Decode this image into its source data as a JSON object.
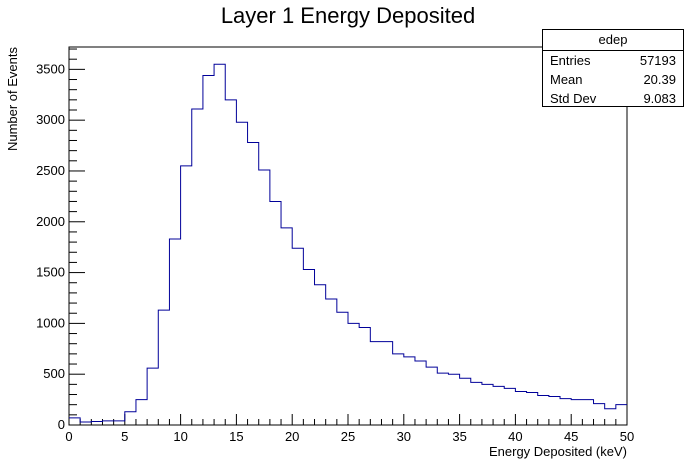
{
  "chart_data": {
    "type": "bar",
    "title": "Layer 1 Energy Deposited",
    "xlabel": "Energy Deposited (keV)",
    "ylabel": "Number of Events",
    "xlim": [
      0,
      50
    ],
    "ylim": [
      0,
      3720
    ],
    "x_ticks": [
      0,
      5,
      10,
      15,
      20,
      25,
      30,
      35,
      40,
      45,
      50
    ],
    "y_ticks": [
      0,
      500,
      1000,
      1500,
      2000,
      2500,
      3000,
      3500
    ],
    "bin_width": 1,
    "bin_edges_start": 0,
    "values": [
      70,
      30,
      35,
      40,
      40,
      130,
      250,
      560,
      1130,
      1830,
      2550,
      3110,
      3440,
      3550,
      3200,
      2980,
      2780,
      2510,
      2200,
      1940,
      1740,
      1530,
      1380,
      1240,
      1110,
      1000,
      960,
      820,
      820,
      700,
      670,
      630,
      570,
      510,
      500,
      460,
      420,
      400,
      380,
      360,
      330,
      320,
      290,
      280,
      260,
      250,
      250,
      210,
      160,
      200
    ],
    "line_color": "#000099",
    "grid": false,
    "legend": "none",
    "stats": {
      "name": "edep",
      "rows": [
        {
          "label": "Entries",
          "value": "57193"
        },
        {
          "label": "Mean",
          "value": "20.39"
        },
        {
          "label": "Std Dev",
          "value": "9.083"
        }
      ]
    }
  }
}
